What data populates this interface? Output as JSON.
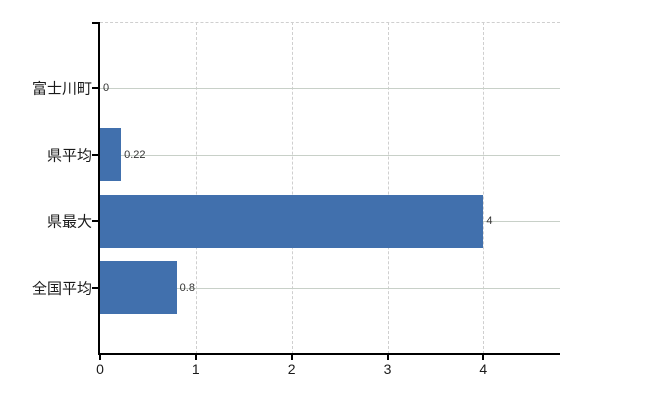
{
  "chart_data": {
    "type": "bar",
    "orientation": "horizontal",
    "title": "",
    "xlabel": "",
    "ylabel": "",
    "categories": [
      "富士川町",
      "県平均",
      "県最大",
      "全国平均"
    ],
    "values": [
      0,
      0.22,
      4,
      0.8
    ],
    "value_labels": [
      "0",
      "0.22",
      "4",
      "0.8"
    ],
    "x_ticks": [
      0,
      1,
      2,
      3,
      4
    ],
    "x_tick_labels": [
      "0",
      "1",
      "2",
      "3",
      "4"
    ],
    "xlim": [
      0,
      4.8
    ],
    "grid": "on",
    "legend": "none"
  },
  "style": {
    "bar_color": "#4170ad",
    "axis_color": "#000000",
    "grid_dashed_color": "#cfcfcf",
    "grid_solid_color": "#c8d0c8",
    "label_color": "#1a1a1a",
    "value_label_color": "#333333",
    "background_color": "#ffffff"
  }
}
